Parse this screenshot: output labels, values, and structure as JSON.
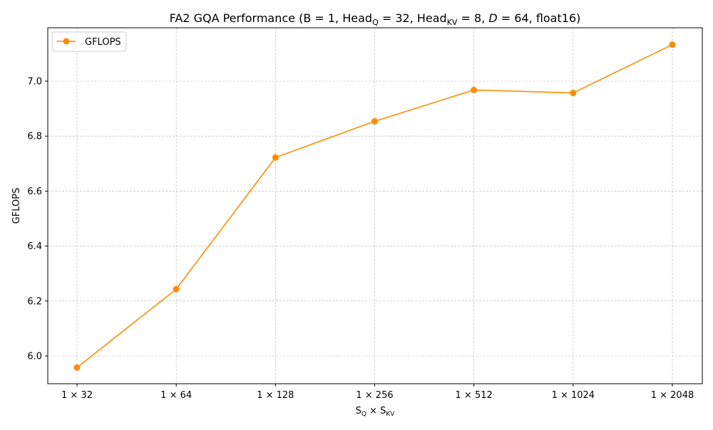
{
  "chart_data": {
    "type": "line",
    "title_parts": {
      "prefix": "FA2 GQA Performance (B = 1, Head",
      "sub_q": "Q",
      "mid1": " = 32, Head",
      "sub_kv": "KV",
      "mid2": " = 8, ",
      "d_symbol": "D",
      "suffix": " = 64, float16)"
    },
    "xlabel_parts": {
      "s": "S",
      "sub_q": "Q",
      "times": " × ",
      "sub_kv": "KV"
    },
    "ylabel": "GFLOPS",
    "categories": [
      "1 × 32",
      "1 × 64",
      "1 × 128",
      "1 × 256",
      "1 × 512",
      "1 × 1024",
      "1 × 2048"
    ],
    "series": [
      {
        "name": "GFLOPS",
        "color": "#ff8c00",
        "values": [
          5.958,
          6.243,
          6.722,
          6.854,
          6.968,
          6.957,
          7.133
        ]
      }
    ],
    "ylim": [
      5.9,
      7.18
    ],
    "yticks": [
      6.0,
      6.2,
      6.4,
      6.6,
      6.8,
      7.0
    ],
    "ytick_labels": [
      "6.0",
      "6.2",
      "6.4",
      "6.6",
      "6.8",
      "7.0"
    ],
    "grid": true,
    "legend_position": "top-left"
  }
}
